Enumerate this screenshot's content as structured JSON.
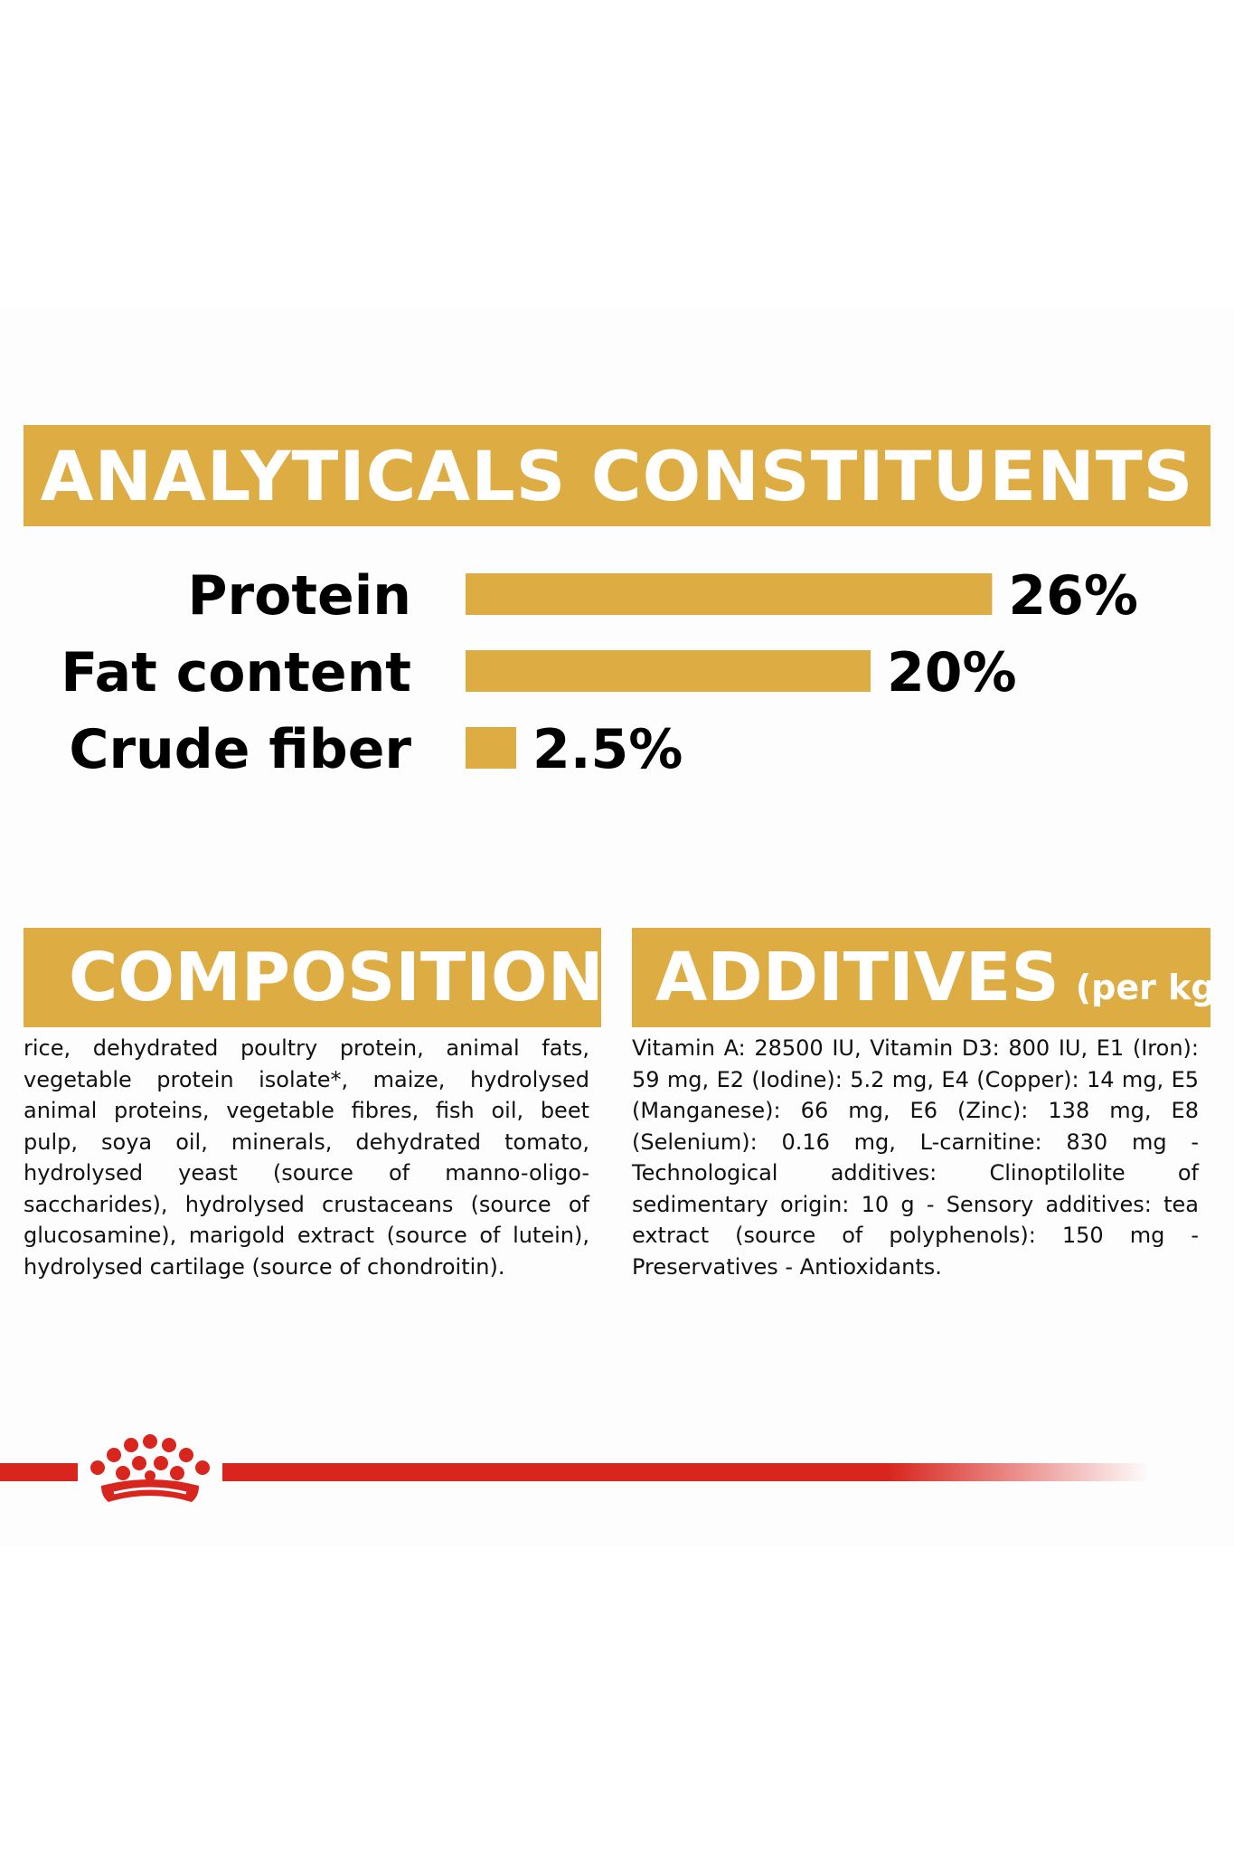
{
  "analyticals": {
    "title": "ANALYTICALS CONSTITUENTS"
  },
  "chart_data": {
    "type": "bar",
    "orientation": "horizontal",
    "categories": [
      "Protein",
      "Fat content",
      "Crude fiber"
    ],
    "values": [
      26,
      20,
      2.5
    ],
    "value_labels": [
      "26%",
      "20%",
      "2.5%"
    ],
    "unit": "%",
    "title": "ANALYTICALS CONSTITUENTS",
    "xlabel": "",
    "ylabel": "",
    "grid": false,
    "legend": "none",
    "bar_color": "#ddad44"
  },
  "composition": {
    "title": "COMPOSITION",
    "text": "rice, dehydrated poultry protein, animal fats, vegetable protein isolate*, maize, hydrolysed animal proteins, vegetable fibres, fish oil, beet pulp, soya oil, minerals, dehydrated tomato, hydrolysed yeast (source of manno-oligo-saccharides), hydrolysed crustaceans (source of glucosamine), marigold extract (source of lutein), hydrolysed cartilage (source of chondroitin)."
  },
  "additives": {
    "title": "ADDITIVES",
    "suffix": "(per kg)",
    "text": "Vitamin A: 28500 IU, Vitamin D3: 800 IU, E1 (Iron): 59 mg, E2 (Iodine): 5.2 mg, E4 (Copper): 14 mg, E5 (Manganese): 66 mg, E6 (Zinc): 138 mg, E8 (Selenium): 0.16 mg, L-carnitine: 830 mg - Technological additives: Clinoptilolite of sedimentary origin: 10 g - Sensory additives: tea extract (source of polyphenols): 150 mg - Preservatives - Antioxidants."
  },
  "brand": {
    "logo_icon": "royal-canin-crown-icon",
    "line_color": "#d8261f"
  }
}
